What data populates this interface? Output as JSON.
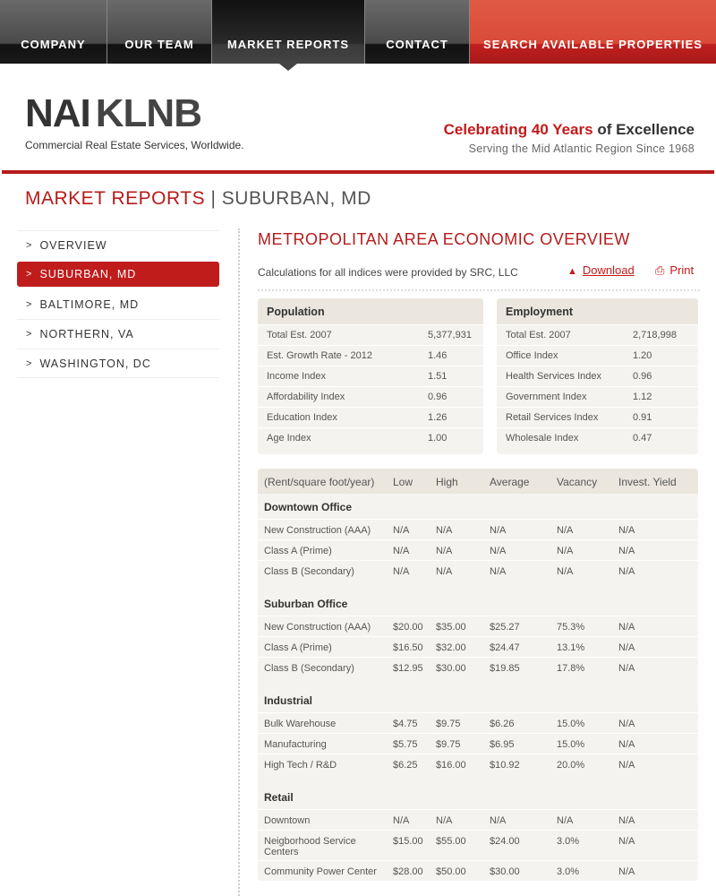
{
  "nav": {
    "items": [
      "COMPANY",
      "OUR TEAM",
      "MARKET REPORTS",
      "CONTACT",
      "SEARCH AVAILABLE PROPERTIES"
    ],
    "active": "MARKET REPORTS"
  },
  "brand": {
    "logo_nai": "NAI",
    "logo_klnb": "KLNB",
    "tagline": "Commercial Real Estate Services, Worldwide.",
    "slogan_red": "Celebrating 40 Years",
    "slogan_dark": "of Excellence",
    "slogan_sub": "Serving the Mid Atlantic Region Since 1968"
  },
  "colors": {
    "accent": "#b51b1b"
  },
  "page": {
    "title": "MARKET REPORTS",
    "sep": "|",
    "subtitle": "SUBURBAN, MD"
  },
  "sidebar": {
    "items": [
      {
        "label": "OVERVIEW"
      },
      {
        "label": "SUBURBAN, MD",
        "active": true
      },
      {
        "label": "BALTIMORE, MD"
      },
      {
        "label": "NORTHERN, VA"
      },
      {
        "label": "WASHINGTON, DC"
      }
    ]
  },
  "main": {
    "heading": "METROPOLITAN AREA ECONOMIC OVERVIEW",
    "calc_note": "Calculations for all indices were provided by SRC, LLC",
    "download": "Download",
    "print": "Print",
    "population": {
      "title": "Population",
      "rows": [
        [
          "Total Est. 2007",
          "5,377,931"
        ],
        [
          "Est. Growth Rate - 2012",
          "1.46"
        ],
        [
          "Income Index",
          "1.51"
        ],
        [
          "Affordability Index",
          "0.96"
        ],
        [
          "Education Index",
          "1.26"
        ],
        [
          "Age Index",
          "1.00"
        ]
      ]
    },
    "employment": {
      "title": "Employment",
      "rows": [
        [
          "Total Est. 2007",
          "2,718,998"
        ],
        [
          "Office Index",
          "1.20"
        ],
        [
          "Health Services Index",
          "0.96"
        ],
        [
          "Government Index",
          "1.12"
        ],
        [
          "Retail Services Index",
          "0.91"
        ],
        [
          "Wholesale Index",
          "0.47"
        ]
      ]
    },
    "rent": {
      "headers": [
        "(Rent/square foot/year)",
        "Low",
        "High",
        "Average",
        "Vacancy",
        "Invest. Yield"
      ],
      "sections": [
        {
          "title": "Downtown Office",
          "rows": [
            [
              "New Construction (AAA)",
              "N/A",
              "N/A",
              "N/A",
              "N/A",
              "N/A"
            ],
            [
              "Class A (Prime)",
              "N/A",
              "N/A",
              "N/A",
              "N/A",
              "N/A"
            ],
            [
              "Class B (Secondary)",
              "N/A",
              "N/A",
              "N/A",
              "N/A",
              "N/A"
            ]
          ]
        },
        {
          "title": "Suburban Office",
          "rows": [
            [
              "New Construction (AAA)",
              "$20.00",
              "$35.00",
              "$25.27",
              "75.3%",
              "N/A"
            ],
            [
              "Class A (Prime)",
              "$16.50",
              "$32.00",
              "$24.47",
              "13.1%",
              "N/A"
            ],
            [
              "Class B (Secondary)",
              "$12.95",
              "$30.00",
              "$19.85",
              "17.8%",
              "N/A"
            ]
          ]
        },
        {
          "title": "Industrial",
          "rows": [
            [
              "Bulk Warehouse",
              "$4.75",
              "$9.75",
              "$6.26",
              "15.0%",
              "N/A"
            ],
            [
              "Manufacturing",
              "$5.75",
              "$9.75",
              "$6.95",
              "15.0%",
              "N/A"
            ],
            [
              "High Tech / R&D",
              "$6.25",
              "$16.00",
              "$10.92",
              "20.0%",
              "N/A"
            ]
          ]
        },
        {
          "title": "Retail",
          "rows": [
            [
              "Downtown",
              "N/A",
              "N/A",
              "N/A",
              "N/A",
              "N/A"
            ],
            [
              "Neigborhood Service Centers",
              "$15.00",
              "$55.00",
              "$24.00",
              "3.0%",
              "N/A"
            ],
            [
              "Community Power Center",
              "$28.00",
              "$50.00",
              "$30.00",
              "3.0%",
              "N/A"
            ]
          ]
        }
      ]
    }
  }
}
